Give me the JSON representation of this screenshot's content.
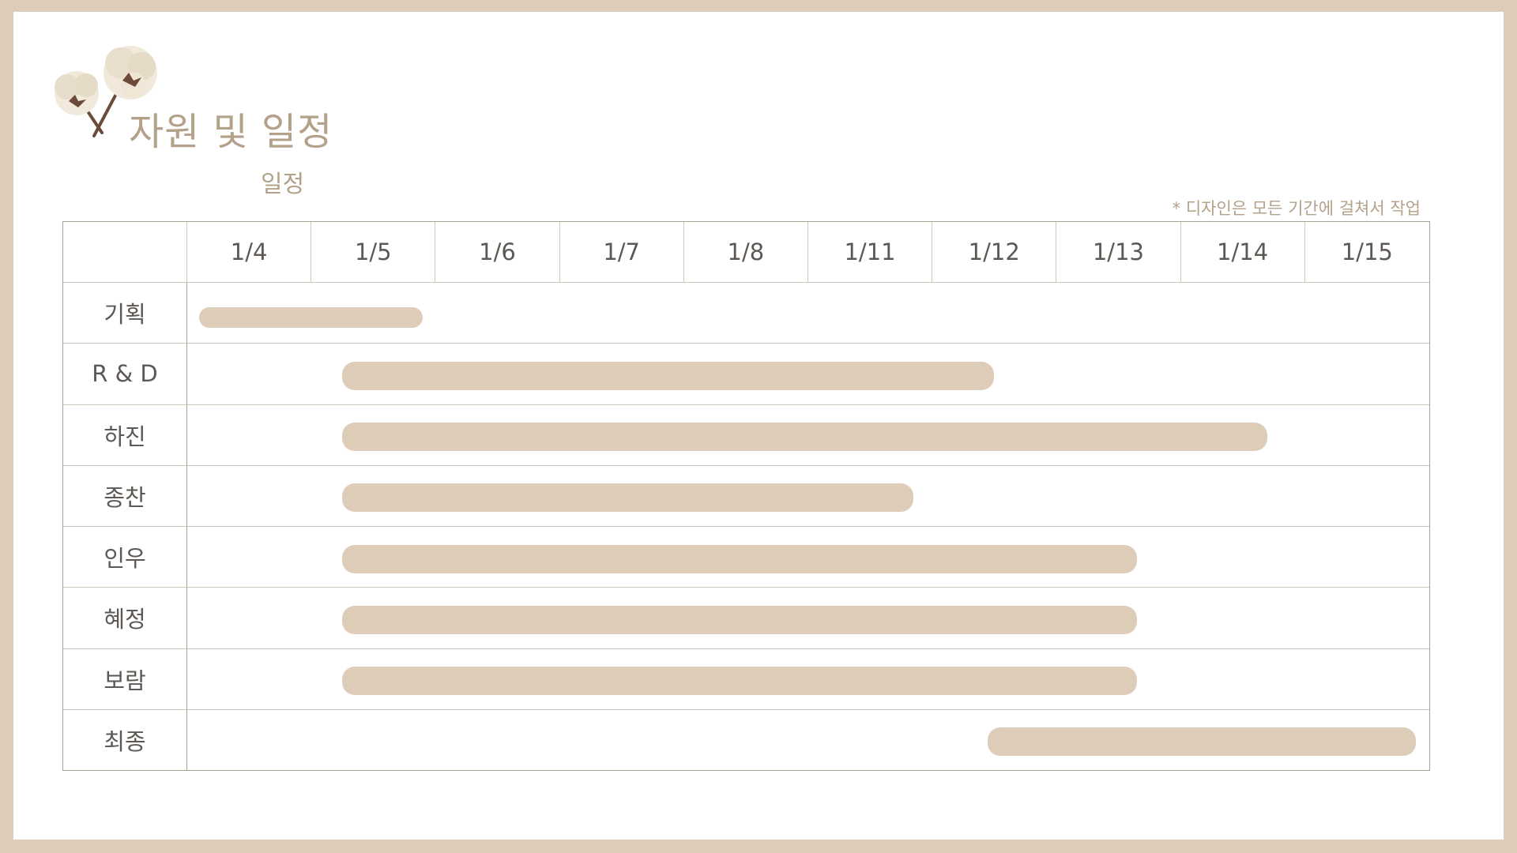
{
  "title": "자원 및 일정",
  "subtitle": "일정",
  "note": "* 디자인은 모든 기간에 걸쳐서 작업",
  "colors": {
    "frame": "#ddcdb8",
    "accent": "#b3a18a",
    "bar": "#ddcdb8",
    "text": "#5d5853"
  },
  "icons": {
    "logo": "cotton-flower-icon"
  },
  "chart_data": {
    "type": "gantt",
    "dates": [
      "1/4",
      "1/5",
      "1/6",
      "1/7",
      "1/8",
      "1/11",
      "1/12",
      "1/13",
      "1/14",
      "1/15"
    ],
    "tasks": [
      {
        "name": "기획",
        "start": 0.1,
        "end": 1.9
      },
      {
        "name": "R & D",
        "start": 1.25,
        "end": 6.5
      },
      {
        "name": "하진",
        "start": 1.25,
        "end": 8.7
      },
      {
        "name": "종찬",
        "start": 1.25,
        "end": 5.85
      },
      {
        "name": "인우",
        "start": 1.25,
        "end": 7.65
      },
      {
        "name": "혜정",
        "start": 1.25,
        "end": 7.65
      },
      {
        "name": "보람",
        "start": 1.25,
        "end": 7.65
      },
      {
        "name": "최종",
        "start": 6.45,
        "end": 9.9
      }
    ]
  }
}
